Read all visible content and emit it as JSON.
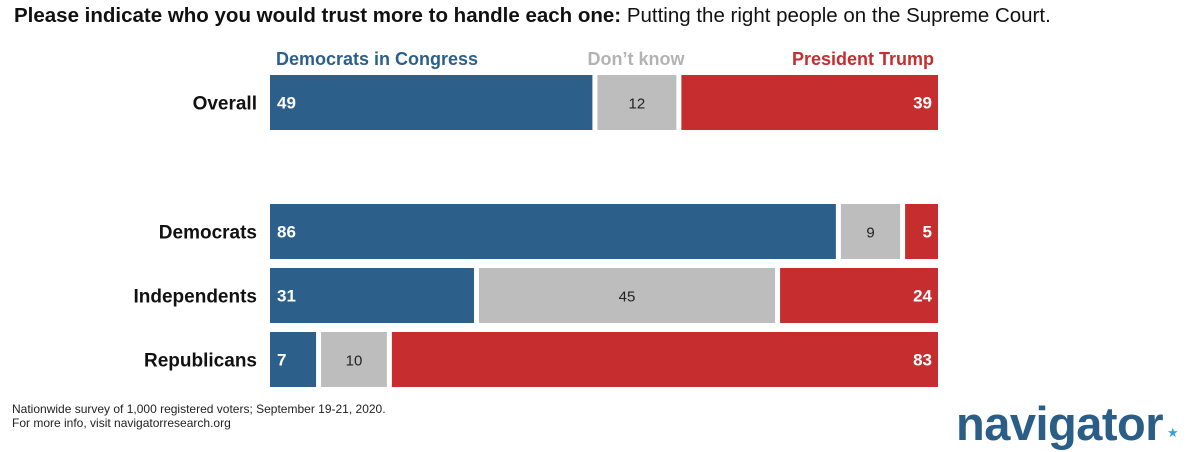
{
  "title": {
    "lead": "Please indicate who you would trust more to handle each one:",
    "rest": "Putting the right people on the Supreme Court."
  },
  "colors": {
    "democrats": "#2c5f8a",
    "dont_know": "#bdbdbd",
    "trump": "#c62d2f",
    "dont_know_label": "#b3b3b3"
  },
  "chart_data": {
    "type": "bar",
    "orientation": "horizontal",
    "stacked": true,
    "percent_scale": true,
    "legend_position": "top",
    "categories": [
      "Overall",
      "Democrats",
      "Independents",
      "Republicans"
    ],
    "series": [
      {
        "name": "Democrats in Congress",
        "values": [
          49,
          86,
          31,
          7
        ]
      },
      {
        "name": "Don’t know",
        "values": [
          12,
          9,
          45,
          10
        ]
      },
      {
        "name": "President Trump",
        "values": [
          39,
          5,
          24,
          83
        ]
      }
    ]
  },
  "footnote": {
    "line1": "Nationwide survey of 1,000 registered voters; September 19-21, 2020.",
    "line2": "For more info, visit navigatorresearch.org"
  },
  "logo": {
    "text": "navigator",
    "star": "★"
  }
}
